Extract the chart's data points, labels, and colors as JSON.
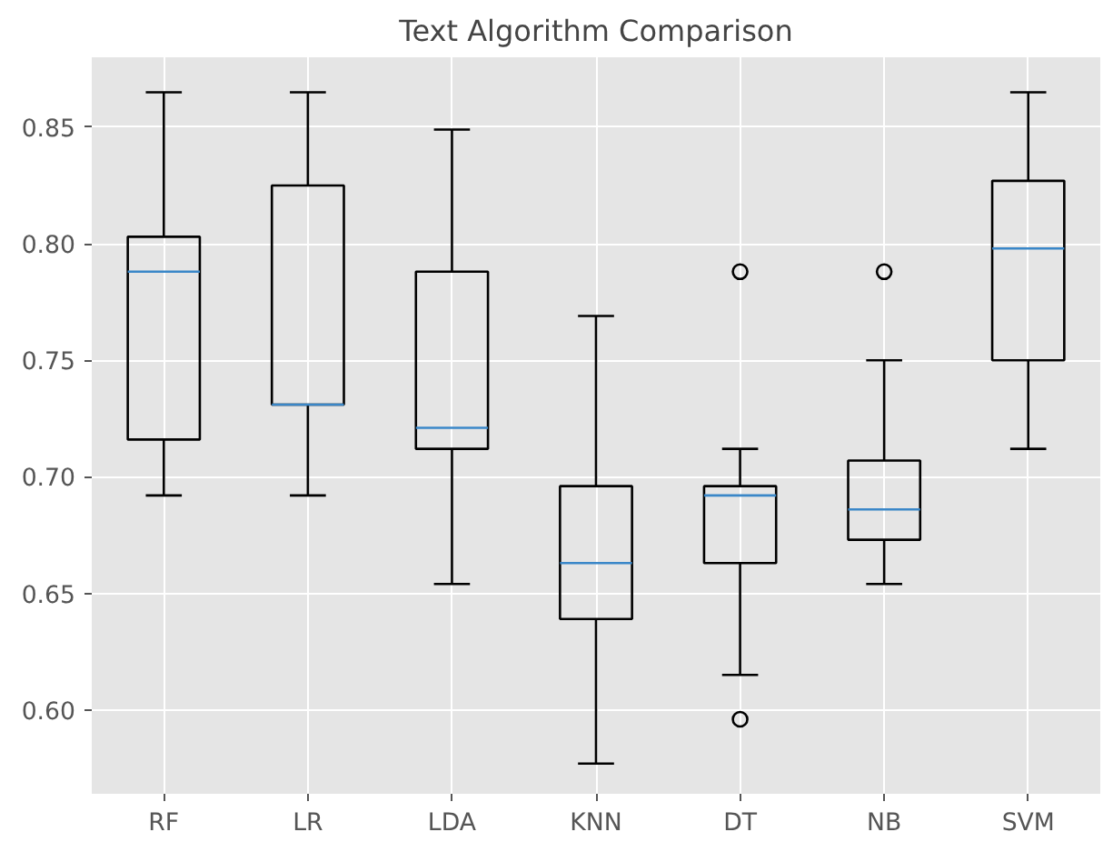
{
  "chart_data": {
    "type": "box",
    "title": "Text Algorithm Comparison",
    "categories": [
      "RF",
      "LR",
      "LDA",
      "KNN",
      "DT",
      "NB",
      "SVM"
    ],
    "boxes": [
      {
        "low": 0.692,
        "q1": 0.716,
        "median": 0.788,
        "q3": 0.803,
        "high": 0.865
      },
      {
        "low": 0.692,
        "q1": 0.731,
        "median": 0.731,
        "q3": 0.825,
        "high": 0.865
      },
      {
        "low": 0.654,
        "q1": 0.712,
        "median": 0.721,
        "q3": 0.788,
        "high": 0.849
      },
      {
        "low": 0.577,
        "q1": 0.639,
        "median": 0.663,
        "q3": 0.696,
        "high": 0.769
      },
      {
        "low": 0.615,
        "q1": 0.663,
        "median": 0.692,
        "q3": 0.696,
        "high": 0.712,
        "outliers": [
          0.788,
          0.596
        ]
      },
      {
        "low": 0.654,
        "q1": 0.673,
        "median": 0.686,
        "q3": 0.707,
        "high": 0.75,
        "outliers": [
          0.788
        ]
      },
      {
        "low": 0.712,
        "q1": 0.75,
        "median": 0.798,
        "q3": 0.827,
        "high": 0.865
      }
    ],
    "color": "#000000",
    "ylim": [
      0.564,
      0.88
    ],
    "yticks": [
      {
        "value": 0.6,
        "label": "0.60"
      },
      0.65,
      {
        "value": 0.7,
        "label": "0.70"
      },
      0.75,
      {
        "value": 0.8,
        "label": "0.80"
      },
      0.85
    ],
    "grid": true
  }
}
